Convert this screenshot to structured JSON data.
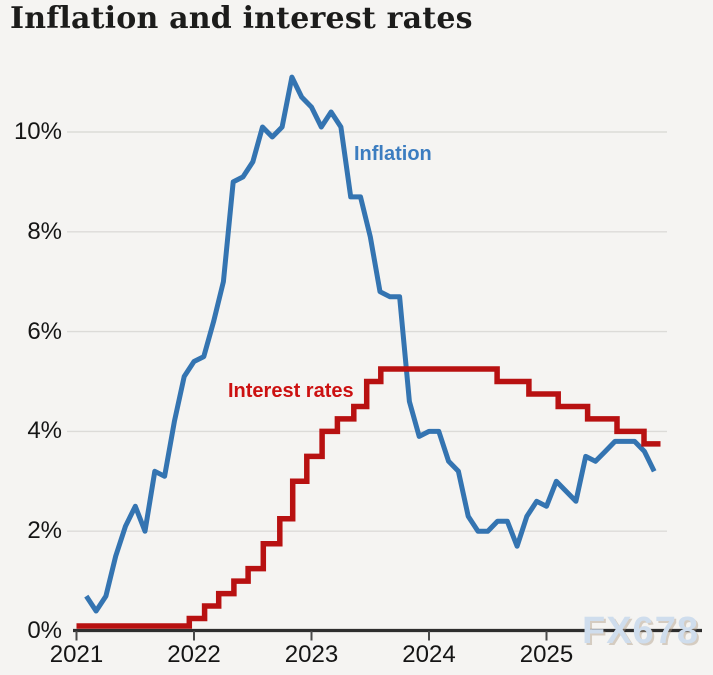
{
  "header": {
    "title": "Inflation and interest rates"
  },
  "watermark": {
    "text": "FX678"
  },
  "colors": {
    "background": "#f5f4f2",
    "gridline": "#dcdbd8",
    "axis": "#2e2e2e",
    "tick": "#4a4a4a",
    "inflation_line": "#3474b1",
    "inflation_label": "#3c7dc0",
    "rates_line": "#b81111",
    "rates_label": "#cc1111"
  },
  "chart_data": {
    "type": "line",
    "title": "Inflation and interest rates",
    "x_axis": {
      "tick_labels": [
        "2021",
        "2022",
        "2023",
        "2024",
        "2025"
      ],
      "tick_years": [
        2021,
        2022,
        2023,
        2024,
        2025
      ],
      "range_years": [
        2021.0,
        2025.97
      ]
    },
    "y_axis": {
      "tick_labels": [
        "0%",
        "2%",
        "4%",
        "6%",
        "8%",
        "10%"
      ],
      "tick_values": [
        0,
        2,
        4,
        6,
        8,
        10
      ],
      "range": [
        0,
        11.5
      ],
      "grid": true
    },
    "legend_position": "inline-labels",
    "series": [
      {
        "name": "Inflation",
        "type": "line",
        "color": "#3474b1",
        "start": "2021-01",
        "frequency": "monthly",
        "values": [
          0.7,
          0.4,
          0.7,
          1.5,
          2.1,
          2.5,
          2.0,
          3.2,
          3.1,
          4.2,
          5.1,
          5.4,
          5.5,
          6.2,
          7.0,
          9.0,
          9.1,
          9.4,
          10.1,
          9.9,
          10.1,
          11.1,
          10.7,
          10.5,
          10.1,
          10.4,
          10.1,
          8.7,
          8.7,
          7.9,
          6.8,
          6.7,
          6.7,
          4.6,
          3.9,
          4.0,
          4.0,
          3.4,
          3.2,
          2.3,
          2.0,
          2.0,
          2.2,
          2.2,
          1.7,
          2.3,
          2.6,
          2.5,
          3.0,
          2.8,
          2.6,
          3.5,
          3.4,
          3.6,
          3.8,
          3.8,
          3.8,
          3.6,
          3.2
        ]
      },
      {
        "name": "Interest rates",
        "type": "step",
        "color": "#b81111",
        "steps": [
          {
            "from": 2021.0,
            "rate": 0.1
          },
          {
            "from": 2021.96,
            "rate": 0.25
          },
          {
            "from": 2022.09,
            "rate": 0.5
          },
          {
            "from": 2022.21,
            "rate": 0.75
          },
          {
            "from": 2022.34,
            "rate": 1.0
          },
          {
            "from": 2022.46,
            "rate": 1.25
          },
          {
            "from": 2022.59,
            "rate": 1.75
          },
          {
            "from": 2022.73,
            "rate": 2.25
          },
          {
            "from": 2022.84,
            "rate": 3.0
          },
          {
            "from": 2022.96,
            "rate": 3.5
          },
          {
            "from": 2023.09,
            "rate": 4.0
          },
          {
            "from": 2023.22,
            "rate": 4.25
          },
          {
            "from": 2023.36,
            "rate": 4.5
          },
          {
            "from": 2023.47,
            "rate": 5.0
          },
          {
            "from": 2023.59,
            "rate": 5.25
          },
          {
            "from": 2024.58,
            "rate": 5.0
          },
          {
            "from": 2024.85,
            "rate": 4.75
          },
          {
            "from": 2025.1,
            "rate": 4.5
          },
          {
            "from": 2025.35,
            "rate": 4.25
          },
          {
            "from": 2025.6,
            "rate": 4.0
          },
          {
            "from": 2025.83,
            "rate": 3.75
          }
        ],
        "end_year": 2025.97
      }
    ]
  }
}
